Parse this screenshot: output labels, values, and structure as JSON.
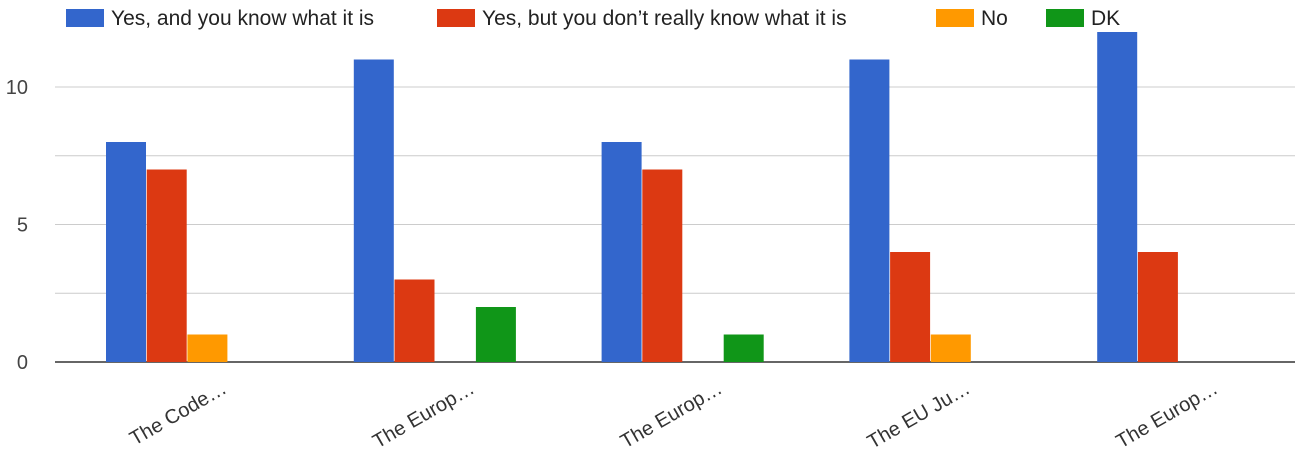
{
  "chart_data": {
    "type": "bar",
    "title": "",
    "xlabel": "",
    "ylabel": "",
    "categories": [
      "The Code…",
      "The Europ…",
      "The Europ…",
      "The EU Ju…",
      "The Europ…"
    ],
    "series": [
      {
        "name": "Yes, and you know what it is",
        "color": "#3366cc",
        "values": [
          8,
          11,
          8,
          11,
          12
        ]
      },
      {
        "name": "Yes, but you don’t really know what it is",
        "color": "#dc3912",
        "values": [
          7,
          3,
          7,
          4,
          4
        ]
      },
      {
        "name": "No",
        "color": "#ff9900",
        "values": [
          1,
          0,
          0,
          1,
          0
        ]
      },
      {
        "name": "DK",
        "color": "#109618",
        "values": [
          0,
          2,
          1,
          0,
          0
        ]
      }
    ],
    "ylim": [
      0,
      12
    ],
    "yticks": [
      "0",
      "5",
      "10"
    ],
    "grid": true,
    "legend_position": "top"
  }
}
